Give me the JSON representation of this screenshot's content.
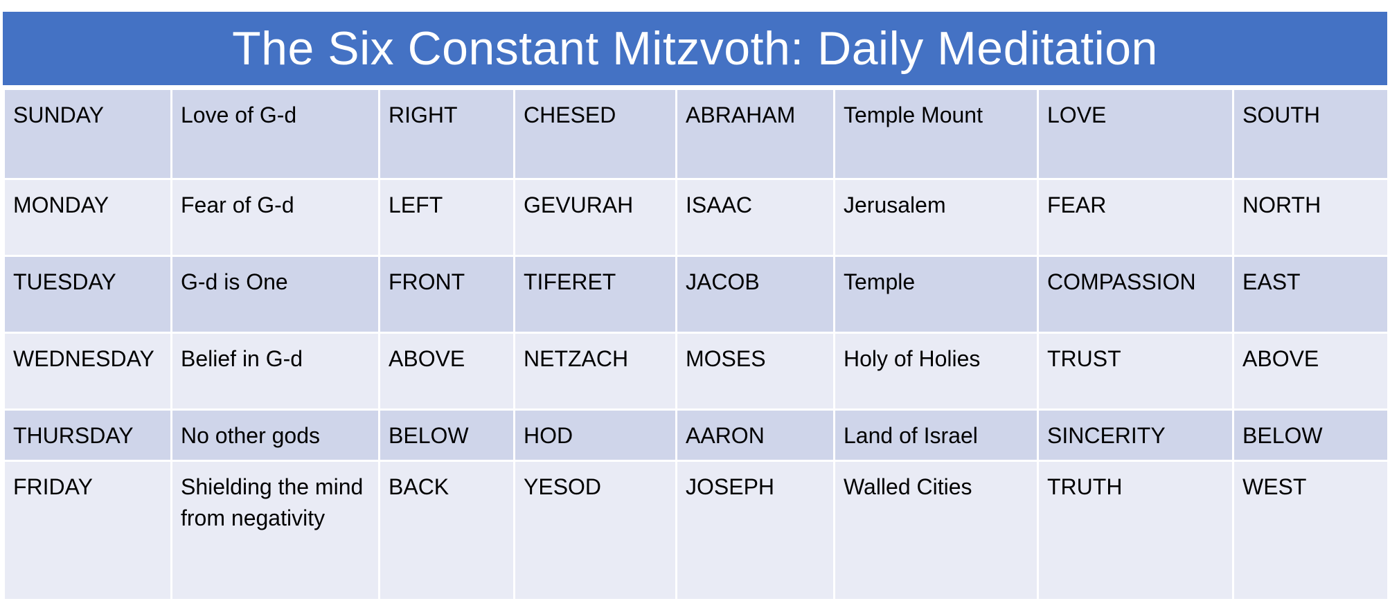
{
  "title": "The Six Constant Mitzvoth: Daily Meditation",
  "rows": [
    [
      "SUNDAY",
      "Love of G-d",
      "RIGHT",
      "CHESED",
      "ABRAHAM",
      "Temple Mount",
      "LOVE",
      "SOUTH"
    ],
    [
      "MONDAY",
      "Fear of G-d",
      "LEFT",
      "GEVURAH",
      "ISAAC",
      "Jerusalem",
      "FEAR",
      "NORTH"
    ],
    [
      "TUESDAY",
      "G-d is One",
      "FRONT",
      "TIFERET",
      "JACOB",
      "Temple",
      "COMPASSION",
      "EAST"
    ],
    [
      "WEDNESDAY",
      "Belief in G-d",
      "ABOVE",
      "NETZACH",
      "MOSES",
      "Holy of Holies",
      "TRUST",
      "ABOVE"
    ],
    [
      "THURSDAY",
      "No other gods",
      "BELOW",
      "HOD",
      "AARON",
      "Land of Israel",
      "SINCERITY",
      "BELOW"
    ],
    [
      "FRIDAY",
      "Shielding the mind from negativity",
      "BACK",
      "YESOD",
      "JOSEPH",
      "Walled Cities",
      "TRUTH",
      "WEST"
    ]
  ],
  "colors": {
    "title_bar": "#4472c4",
    "row_dark": "#cfd5ea",
    "row_light": "#e9ebf5"
  }
}
